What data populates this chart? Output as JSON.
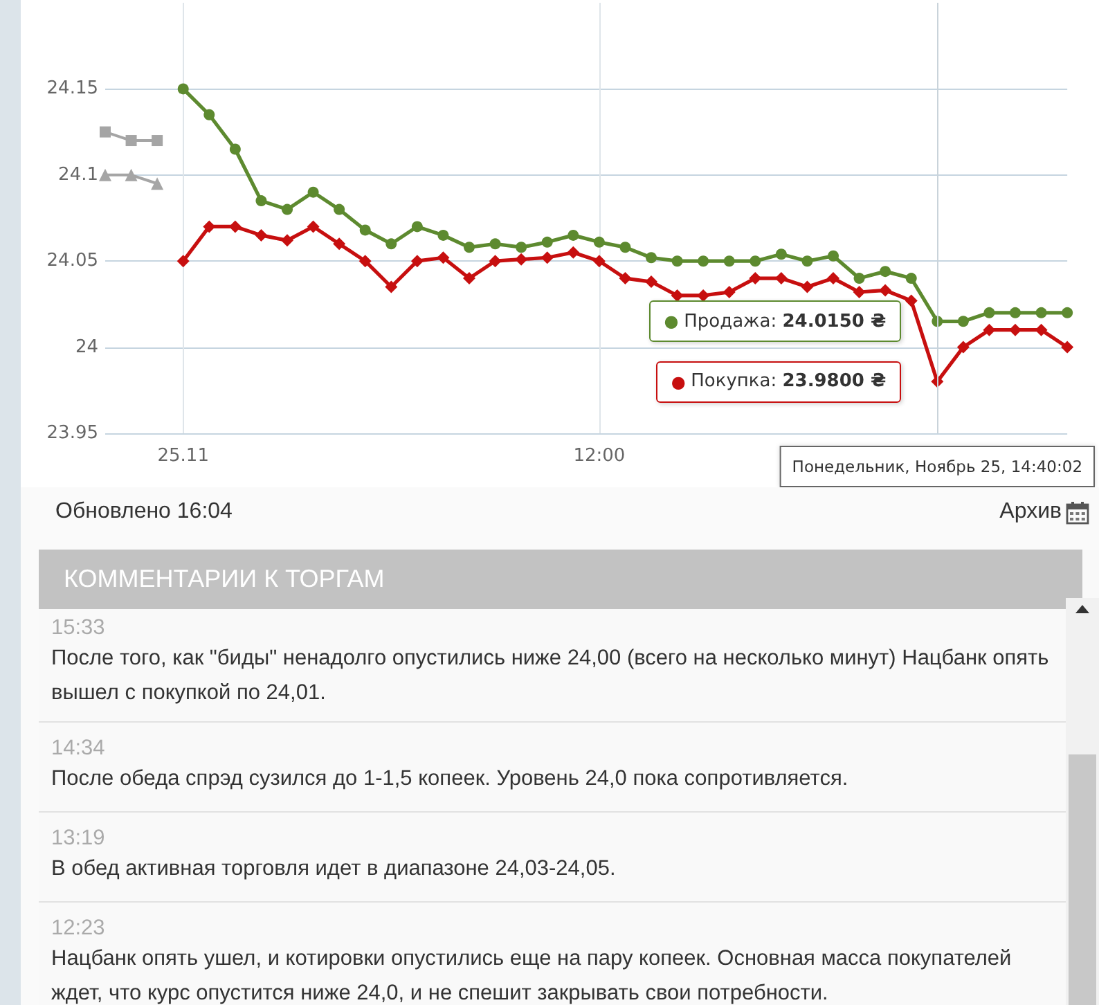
{
  "chart_data": {
    "type": "line",
    "categories": [
      null,
      null,
      null,
      "25.11",
      null,
      null,
      null,
      null,
      null,
      null,
      null,
      null,
      null,
      null,
      null,
      null,
      null,
      null,
      null,
      "12:00",
      null,
      null,
      null,
      null,
      null,
      null,
      null,
      null,
      null,
      null,
      null,
      null,
      "Понедельник, Ноябрь 25, 14:40:02",
      null,
      null,
      null,
      null,
      null
    ],
    "series": [
      {
        "color": "#5d8a2f",
        "marker": "circle",
        "values": [
          null,
          null,
          null,
          24.15,
          24.135,
          24.115,
          24.085,
          24.08,
          24.09,
          24.08,
          24.068,
          24.06,
          24.07,
          24.065,
          24.058,
          24.06,
          24.058,
          24.061,
          24.065,
          24.061,
          24.058,
          24.052,
          24.05,
          24.05,
          24.05,
          24.05,
          24.054,
          24.05,
          24.053,
          24.04,
          24.044,
          24.04,
          24.015,
          24.015,
          24.02,
          24.02,
          24.02,
          24.02
        ]
      },
      {
        "color": "#c70f0f",
        "marker": "diamond",
        "values": [
          null,
          null,
          null,
          24.05,
          24.07,
          24.07,
          24.065,
          24.062,
          24.07,
          24.06,
          24.05,
          24.035,
          24.05,
          24.052,
          24.04,
          24.05,
          24.051,
          24.052,
          24.055,
          24.05,
          24.04,
          24.038,
          24.03,
          24.03,
          24.032,
          24.04,
          24.04,
          24.035,
          24.04,
          24.032,
          24.033,
          24.027,
          23.98,
          24,
          24.01,
          24.01,
          24.01,
          24
        ]
      },
      {
        "color": "#a5a5a5",
        "marker": "square",
        "values": [
          24.125,
          24.12,
          24.12,
          null,
          null,
          null,
          null,
          null,
          null,
          null,
          null,
          null,
          null,
          null,
          null,
          null,
          null,
          null,
          null,
          null,
          null,
          null,
          null,
          null,
          null,
          null,
          null,
          null,
          null,
          null,
          null,
          null,
          null,
          null,
          null,
          null,
          null,
          null
        ]
      },
      {
        "color": "#a5a5a5",
        "marker": "triangle",
        "values": [
          24.1,
          24.1,
          24.095,
          null,
          null,
          null,
          null,
          null,
          null,
          null,
          null,
          null,
          null,
          null,
          null,
          null,
          null,
          null,
          null,
          null,
          null,
          null,
          null,
          null,
          null,
          null,
          null,
          null,
          null,
          null,
          null,
          null,
          null,
          null,
          null,
          null,
          null,
          null
        ]
      }
    ],
    "ylim": [
      23.95,
      24.2
    ],
    "yticks": [
      23.95,
      24,
      24.05,
      24.1,
      24.15
    ],
    "grid": true,
    "ref_lines": [
      {
        "axis": "x",
        "value": "Понедельник, Ноябрь 25, 14:40:02"
      }
    ],
    "annotations": [
      {
        "text": "● Продажа: 24.0150 ₴",
        "x": "Понедельник, Ноябрь 25, 14:40:02",
        "y": 24.015
      },
      {
        "text": "● Покупка: 23.9800 ₴",
        "x": "Понедельник, Ноябрь 25, 14:40:02",
        "y": 23.98
      },
      "Обновлено 16:04",
      "Архив",
      "КОММЕНТАРИИ К ТОРГАМ",
      "15:33",
      "После того, как \"биды\" ненадолго опустились ниже 24,00 (всего на несколько минут) Нацбанк опять вышел с покупкой по 24,01.",
      "14:34",
      "После обеда спрэд сузился до 1-1,5 копеек. Уровень 24,0 пока сопротивляется.",
      "13:19",
      "В обед активная торговля идет в диапазоне 24,03-24,05.",
      "12:23",
      "Нацбанк опять ушел, и котировки опустились еще на пару копеек. Основная масса покупателей ждет, что курс опустится ниже 24,0, и не спешит закрывать свои потребности."
    ]
  }
}
